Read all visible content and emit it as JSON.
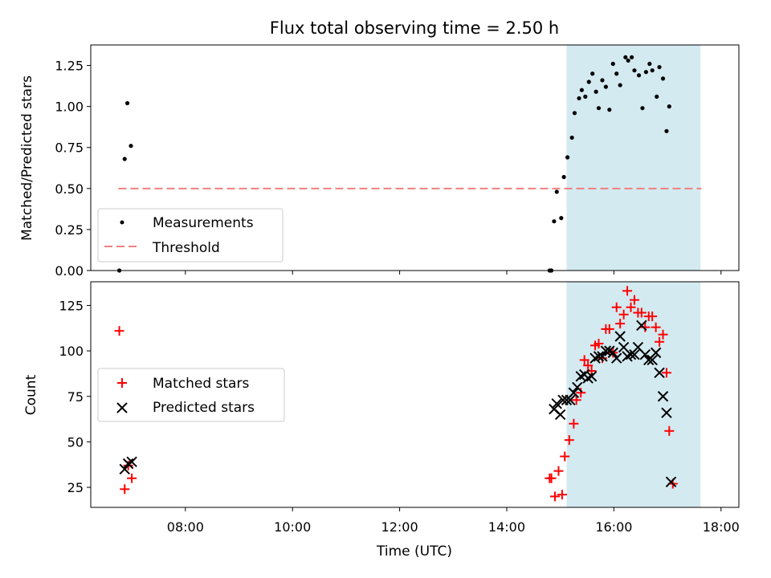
{
  "chart_data": [
    {
      "type": "scatter",
      "title": "Flux total observing time = 2.50 h",
      "ylabel": "Matched/Predicted stars",
      "xlabel": "",
      "xlim": [
        "06:14",
        "18:20"
      ],
      "ylim": [
        0,
        1.375
      ],
      "yticks": [
        "0.00",
        "0.25",
        "0.50",
        "0.75",
        "1.00",
        "1.25"
      ],
      "yticks_values": [
        0,
        0.25,
        0.5,
        0.75,
        1.0,
        1.25
      ],
      "highlight_span": {
        "from": "15:07",
        "to": "17:37",
        "color": "#d3eaf0"
      },
      "threshold": {
        "name": "Threshold",
        "value": 0.5,
        "from": "06:45",
        "to": "17:38",
        "color": "#f08080"
      },
      "legend_placement": "lower-left",
      "series": [
        {
          "name": "Measurements",
          "color": "#000000",
          "points": [
            [
              "06:46",
              0.0
            ],
            [
              "06:52",
              0.68
            ],
            [
              "06:55",
              1.02
            ],
            [
              "06:59",
              0.76
            ],
            [
              "14:48",
              0.0
            ],
            [
              "14:50",
              0.0
            ],
            [
              "14:53",
              0.3
            ],
            [
              "14:56",
              0.48
            ],
            [
              "15:01",
              0.32
            ],
            [
              "15:04",
              0.57
            ],
            [
              "15:08",
              0.69
            ],
            [
              "15:13",
              0.81
            ],
            [
              "15:16",
              0.96
            ],
            [
              "15:21",
              1.05
            ],
            [
              "15:24",
              1.1
            ],
            [
              "15:28",
              1.06
            ],
            [
              "15:32",
              1.15
            ],
            [
              "15:36",
              1.2
            ],
            [
              "15:40",
              1.09
            ],
            [
              "15:43",
              0.99
            ],
            [
              "15:47",
              1.16
            ],
            [
              "15:51",
              1.12
            ],
            [
              "15:55",
              0.98
            ],
            [
              "15:59",
              1.26
            ],
            [
              "16:03",
              1.2
            ],
            [
              "16:07",
              1.13
            ],
            [
              "16:13",
              1.3
            ],
            [
              "16:16",
              1.28
            ],
            [
              "16:20",
              1.3
            ],
            [
              "16:23",
              1.22
            ],
            [
              "16:28",
              1.19
            ],
            [
              "16:32",
              0.99
            ],
            [
              "16:36",
              1.21
            ],
            [
              "16:40",
              1.26
            ],
            [
              "16:43",
              1.22
            ],
            [
              "16:48",
              1.06
            ],
            [
              "16:51",
              1.24
            ],
            [
              "16:55",
              1.17
            ],
            [
              "16:59",
              0.85
            ],
            [
              "17:02",
              1.0
            ]
          ]
        }
      ]
    },
    {
      "type": "scatter",
      "title": "",
      "ylabel": "Count",
      "xlabel": "Time (UTC)",
      "xlim": [
        "06:14",
        "18:20"
      ],
      "ylim": [
        14,
        138
      ],
      "xticks": [
        "08:00",
        "10:00",
        "12:00",
        "14:00",
        "16:00",
        "18:00"
      ],
      "yticks": [
        "25",
        "50",
        "75",
        "100",
        "125"
      ],
      "yticks_values": [
        25,
        50,
        75,
        100,
        125
      ],
      "highlight_span": {
        "from": "15:07",
        "to": "17:37",
        "color": "#d3eaf0"
      },
      "legend_placement": "center-left",
      "series": [
        {
          "name": "Matched stars",
          "color": "#ff0000",
          "marker": "plus",
          "points": [
            [
              "06:46",
              111
            ],
            [
              "06:52",
              24
            ],
            [
              "06:56",
              37
            ],
            [
              "07:00",
              30
            ],
            [
              "14:48",
              30
            ],
            [
              "14:50",
              30
            ],
            [
              "14:54",
              20
            ],
            [
              "14:58",
              34
            ],
            [
              "15:02",
              21
            ],
            [
              "15:05",
              42
            ],
            [
              "15:10",
              51
            ],
            [
              "15:15",
              60
            ],
            [
              "15:18",
              73
            ],
            [
              "15:23",
              77
            ],
            [
              "15:27",
              95
            ],
            [
              "15:31",
              92
            ],
            [
              "15:35",
              89
            ],
            [
              "15:39",
              103
            ],
            [
              "15:43",
              104
            ],
            [
              "15:47",
              96
            ],
            [
              "15:51",
              112
            ],
            [
              "15:55",
              112
            ],
            [
              "15:59",
              99
            ],
            [
              "16:03",
              124
            ],
            [
              "16:07",
              115
            ],
            [
              "16:11",
              120
            ],
            [
              "16:15",
              133
            ],
            [
              "16:19",
              124
            ],
            [
              "16:23",
              128
            ],
            [
              "16:27",
              121
            ],
            [
              "16:31",
              121
            ],
            [
              "16:35",
              113
            ],
            [
              "16:39",
              119
            ],
            [
              "16:43",
              119
            ],
            [
              "16:47",
              113
            ],
            [
              "16:51",
              105
            ],
            [
              "16:55",
              109
            ],
            [
              "16:59",
              88
            ],
            [
              "17:02",
              56
            ],
            [
              "17:06",
              27
            ]
          ]
        },
        {
          "name": "Predicted stars",
          "color": "#000000",
          "marker": "x",
          "points": [
            [
              "06:52",
              35
            ],
            [
              "06:56",
              38
            ],
            [
              "07:00",
              39
            ],
            [
              "14:53",
              68
            ],
            [
              "14:56",
              71
            ],
            [
              "15:00",
              65
            ],
            [
              "15:03",
              73
            ],
            [
              "15:07",
              73
            ],
            [
              "15:11",
              73
            ],
            [
              "15:15",
              77
            ],
            [
              "15:19",
              80
            ],
            [
              "15:23",
              86
            ],
            [
              "15:27",
              87
            ],
            [
              "15:31",
              85
            ],
            [
              "15:35",
              86
            ],
            [
              "15:39",
              96
            ],
            [
              "15:43",
              97
            ],
            [
              "15:47",
              97
            ],
            [
              "15:51",
              100
            ],
            [
              "15:55",
              100
            ],
            [
              "15:59",
              99
            ],
            [
              "16:03",
              96
            ],
            [
              "16:07",
              108
            ],
            [
              "16:11",
              102
            ],
            [
              "16:15",
              97
            ],
            [
              "16:19",
              98
            ],
            [
              "16:23",
              98
            ],
            [
              "16:27",
              102
            ],
            [
              "16:31",
              114
            ],
            [
              "16:35",
              98
            ],
            [
              "16:39",
              95
            ],
            [
              "16:43",
              95
            ],
            [
              "16:47",
              99
            ],
            [
              "16:51",
              88
            ],
            [
              "16:55",
              75
            ],
            [
              "16:59",
              66
            ],
            [
              "17:04",
              28
            ]
          ]
        }
      ]
    }
  ]
}
